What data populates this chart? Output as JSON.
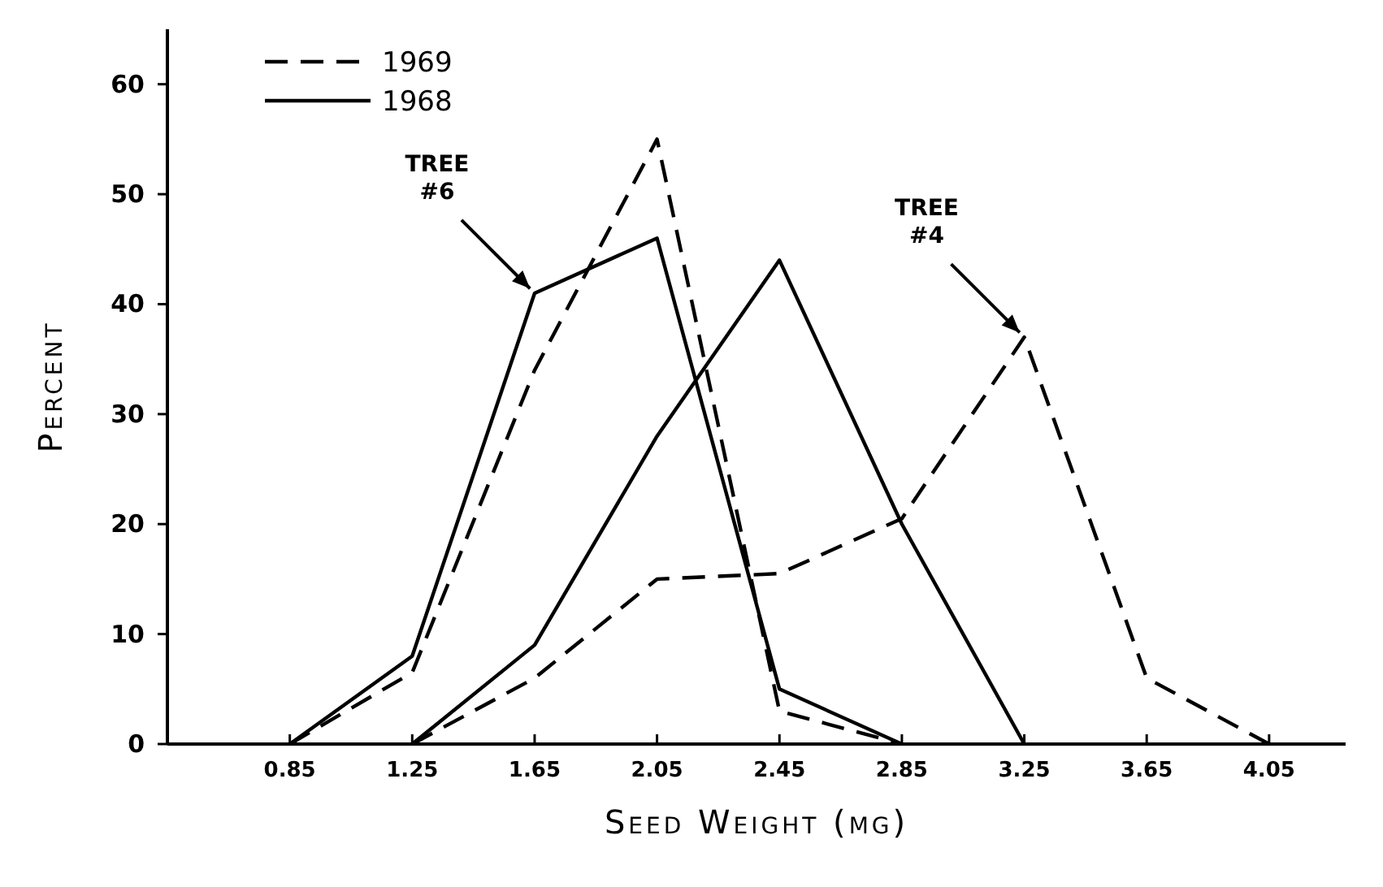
{
  "chart_data": {
    "type": "line",
    "xlabel": "Seed Weight (mg)",
    "ylabel": "Percent",
    "xlim": [
      0.45,
      4.3
    ],
    "ylim": [
      0,
      65
    ],
    "xticks": [
      0.85,
      1.25,
      1.65,
      2.05,
      2.45,
      2.85,
      3.25,
      3.65,
      4.05
    ],
    "yticks": [
      0,
      10,
      20,
      30,
      40,
      50,
      60
    ],
    "legend": "top left",
    "grid": false,
    "marker": "none",
    "series": [
      {
        "name": "1969",
        "color": "#000000",
        "line_style": "dashed",
        "x": [
          0.85,
          1.25,
          1.65,
          2.05,
          2.45,
          2.85
        ],
        "values": [
          0,
          6.5,
          34,
          55,
          3,
          0
        ]
      },
      {
        "name": "1968",
        "color": "#000000",
        "line_style": "solid",
        "x": [
          0.85,
          1.25,
          1.65,
          2.05,
          2.45,
          2.85
        ],
        "values": [
          0,
          8,
          41,
          46,
          5,
          0
        ]
      },
      {
        "color": "#000000",
        "line_style": "solid",
        "x": [
          1.25,
          1.65,
          2.05,
          2.45,
          2.85,
          3.25
        ],
        "values": [
          0,
          9,
          28,
          44,
          20,
          0
        ]
      },
      {
        "color": "#000000",
        "line_style": "dashed",
        "x": [
          1.25,
          1.65,
          2.05,
          2.45,
          2.85,
          3.25,
          3.65,
          4.05
        ],
        "values": [
          0,
          6,
          15,
          15.5,
          20.5,
          37,
          6,
          0
        ]
      }
    ],
    "annotations": [
      {
        "text": "TREE #6",
        "x": 1.65,
        "y": 41
      },
      {
        "text": "TREE #4",
        "x": 3.25,
        "y": 37
      }
    ]
  }
}
